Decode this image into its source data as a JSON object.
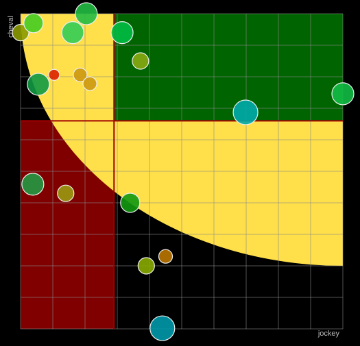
{
  "chart_data": {
    "type": "scatter",
    "x_label": "jockey",
    "y_label": "cheval",
    "xlim": [
      0,
      100
    ],
    "ylim": [
      0,
      100
    ],
    "xticks": [
      0,
      10,
      20,
      30,
      40,
      50,
      60,
      70,
      80,
      90,
      100
    ],
    "yticks": [
      0,
      10,
      20,
      30,
      40,
      50,
      60,
      70,
      80,
      90,
      100
    ],
    "grid": true,
    "thresholds": {
      "x": 29,
      "y": 66,
      "color": "#a00000"
    },
    "zones": {
      "low": "#800000",
      "high": "#006400",
      "curve": "#ffe04a",
      "curve_rx": 100,
      "curve_ry": 80
    },
    "x": [
      0,
      4,
      20.4,
      16.2,
      31.5,
      37.2,
      10.4,
      18.5,
      21.5,
      5.5,
      100,
      69.8,
      3.8,
      14,
      34,
      45,
      39,
      44
    ],
    "values": [
      94,
      97,
      100,
      94,
      94,
      85,
      80.6,
      80.6,
      77.8,
      77.6,
      74.6,
      68.7,
      45.9,
      43,
      40,
      23,
      20,
      0.2
    ],
    "sizes": [
      12,
      14,
      16,
      16,
      16,
      12,
      8,
      10,
      10,
      16,
      16,
      18,
      16,
      12,
      14,
      10,
      12,
      18
    ],
    "colors": [
      "#8a9a00",
      "#44cc22",
      "#22bb44",
      "#33cc55",
      "#00bb44",
      "#88aa11",
      "#dd2200",
      "#cc9911",
      "#cc9911",
      "#119944",
      "#11bb44",
      "#00aaaa",
      "#229944",
      "#999911",
      "#119911",
      "#bb7700",
      "#88aa00",
      "#0099aa"
    ]
  }
}
